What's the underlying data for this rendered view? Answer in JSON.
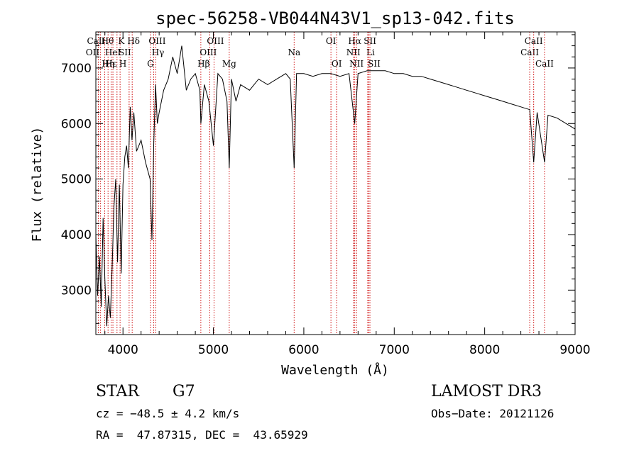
{
  "chart_data": {
    "type": "line",
    "title": "spec-56258-VB044N43V1_sp13-042.fits",
    "xlabel": "Wavelength (Å)",
    "ylabel": "Flux (relative)",
    "xlim": [
      3700,
      9000
    ],
    "ylim": [
      2200,
      7650
    ],
    "x_ticks": [
      4000,
      5000,
      6000,
      7000,
      8000,
      9000
    ],
    "y_ticks": [
      3000,
      4000,
      5000,
      6000,
      7000
    ],
    "line_color": "#000000",
    "marker_color": "#cc0000",
    "series": [
      {
        "x": [
          3700,
          3720,
          3740,
          3760,
          3780,
          3800,
          3820,
          3840,
          3860,
          3880,
          3900,
          3920,
          3940,
          3960,
          3980,
          4000,
          4020,
          4040,
          4060,
          4080,
          4100,
          4120,
          4150,
          4200,
          4250,
          4300,
          4320,
          4340,
          4360,
          4380,
          4400,
          4450,
          4500,
          4550,
          4600,
          4650,
          4700,
          4750,
          4800,
          4850,
          4861,
          4900,
          4950,
          5000,
          5050,
          5100,
          5150,
          5175,
          5200,
          5250,
          5300,
          5400,
          5500,
          5600,
          5700,
          5800,
          5850,
          5893,
          5920,
          6000,
          6100,
          6200,
          6300,
          6400,
          6500,
          6563,
          6600,
          6700,
          6800,
          6900,
          7000,
          7100,
          7200,
          7300,
          7400,
          7500,
          7600,
          7700,
          7800,
          7900,
          8000,
          8100,
          8200,
          8300,
          8400,
          8498,
          8542,
          8580,
          8662,
          8700,
          8800,
          8900,
          9000
        ],
        "y": [
          4000,
          2900,
          3600,
          2700,
          4300,
          3200,
          2350,
          2900,
          2500,
          3400,
          4500,
          5000,
          3500,
          4900,
          3300,
          4900,
          5400,
          5600,
          5200,
          6300,
          5700,
          6200,
          5500,
          5700,
          5300,
          5000,
          3900,
          5600,
          6700,
          6000,
          6200,
          6600,
          6800,
          7200,
          6900,
          7400,
          6600,
          6800,
          6900,
          6600,
          6000,
          6700,
          6400,
          5600,
          6900,
          6800,
          6400,
          5200,
          6800,
          6400,
          6700,
          6600,
          6800,
          6700,
          6800,
          6900,
          6800,
          5200,
          6900,
          6900,
          6850,
          6900,
          6900,
          6850,
          6900,
          6000,
          6900,
          6950,
          6950,
          6950,
          6900,
          6900,
          6850,
          6850,
          6800,
          6750,
          6700,
          6650,
          6600,
          6550,
          6500,
          6450,
          6400,
          6350,
          6300,
          6250,
          5300,
          6200,
          5300,
          6150,
          6100,
          6000,
          5900
        ]
      }
    ],
    "line_markers": [
      {
        "x": 3750,
        "label": "CaII",
        "row": 0,
        "dx": -6
      },
      {
        "x": 3798,
        "label": "Hθ",
        "row": 0,
        "dx": 4
      },
      {
        "x": 3934,
        "label": "K",
        "row": 0,
        "dx": 6
      },
      {
        "x": 3968,
        "label": "H",
        "row": 2,
        "dx": 4
      },
      {
        "x": 3727,
        "label": "OII",
        "row": 1,
        "dx": -8
      },
      {
        "x": 3869,
        "label": "Hε",
        "row": 2,
        "dx": 0
      },
      {
        "x": 3889,
        "label": "HeI",
        "row": 1,
        "dx": 0
      },
      {
        "x": 3835,
        "label": "Hη",
        "row": 2,
        "dx": 0
      },
      {
        "x": 4068,
        "label": "SII",
        "row": 1,
        "dx": -6
      },
      {
        "x": 4102,
        "label": "Hδ",
        "row": 0,
        "dx": 2
      },
      {
        "x": 4304,
        "label": "G",
        "row": 2,
        "dx": 0
      },
      {
        "x": 4340,
        "label": "Hγ",
        "row": 1,
        "dx": 6
      },
      {
        "x": 4363,
        "label": "OIII",
        "row": 0,
        "dx": 2
      },
      {
        "x": 4861,
        "label": "Hβ",
        "row": 2,
        "dx": 4
      },
      {
        "x": 4959,
        "label": "OIII",
        "row": 1,
        "dx": -2
      },
      {
        "x": 5007,
        "label": "OIII",
        "row": 0,
        "dx": 2
      },
      {
        "x": 5175,
        "label": "Mg",
        "row": 2,
        "dx": 0
      },
      {
        "x": 5893,
        "label": "Na",
        "row": 1,
        "dx": 0
      },
      {
        "x": 6300,
        "label": "OI",
        "row": 0,
        "dx": 0
      },
      {
        "x": 6363,
        "label": "OI",
        "row": 2,
        "dx": 0
      },
      {
        "x": 6548,
        "label": "NII",
        "row": 1,
        "dx": 0
      },
      {
        "x": 6563,
        "label": "Hα",
        "row": 0,
        "dx": 0
      },
      {
        "x": 6583,
        "label": "NII",
        "row": 2,
        "dx": 0
      },
      {
        "x": 6707,
        "label": "Li",
        "row": 1,
        "dx": 4
      },
      {
        "x": 6716,
        "label": "SII",
        "row": 0,
        "dx": 2
      },
      {
        "x": 6731,
        "label": "SII",
        "row": 2,
        "dx": 6
      },
      {
        "x": 8498,
        "label": "CaII",
        "row": 1,
        "dx": 0
      },
      {
        "x": 8542,
        "label": "CaII",
        "row": 0,
        "dx": 0
      },
      {
        "x": 8662,
        "label": "CaII",
        "row": 2,
        "dx": 0
      }
    ]
  },
  "footer": {
    "object_class": "STAR",
    "subclass": "G7",
    "survey": "LAMOST DR3",
    "cz": "cz = −48.5 ± 4.2 km/s",
    "obs_date": "Obs−Date: 20121126",
    "coords": "RA =  47.87315, DEC =  43.65929"
  }
}
